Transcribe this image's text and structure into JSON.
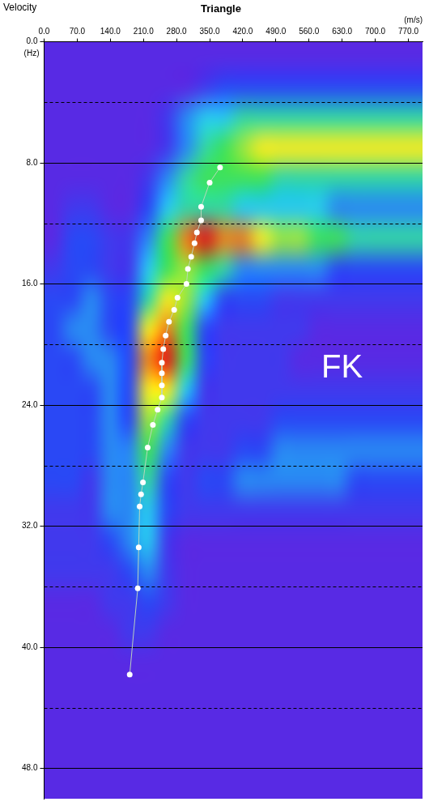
{
  "chart_data": {
    "type": "heatmap",
    "title": "Triangle",
    "corner_text": "Velocity",
    "x_label": "(m/s)",
    "y_label": "(Hz)",
    "xlim": [
      0,
      800
    ],
    "xticks": [
      {
        "value": 0,
        "label": "0.0"
      },
      {
        "value": 70,
        "label": "70.0"
      },
      {
        "value": 140,
        "label": "140.0"
      },
      {
        "value": 210,
        "label": "210.0"
      },
      {
        "value": 280,
        "label": "280.0"
      },
      {
        "value": 350,
        "label": "350.0"
      },
      {
        "value": 420,
        "label": "420.0"
      },
      {
        "value": 490,
        "label": "490.0"
      },
      {
        "value": 560,
        "label": "560.0"
      },
      {
        "value": 630,
        "label": "630.0"
      },
      {
        "value": 700,
        "label": "700.0"
      },
      {
        "value": 770,
        "label": "770.0"
      }
    ],
    "ylim": [
      0,
      50
    ],
    "yticks": [
      {
        "value": 0,
        "label": "0.0"
      },
      {
        "value": 8,
        "label": "8.0"
      },
      {
        "value": 16,
        "label": "16.0"
      },
      {
        "value": 24,
        "label": "24.0"
      },
      {
        "value": 32,
        "label": "32.0"
      },
      {
        "value": 40,
        "label": "40.0"
      },
      {
        "value": 48,
        "label": "48.0"
      }
    ],
    "y_minor_ticks": [
      4,
      12,
      20,
      28,
      36,
      44
    ],
    "grid": true,
    "heatmap": {
      "x_edges": [
        0,
        40,
        80,
        120,
        160,
        200,
        240,
        280,
        320,
        360,
        400,
        440,
        480,
        520,
        560,
        600,
        640,
        680,
        720,
        760,
        800
      ],
      "y_edges": [
        0,
        2,
        4,
        6,
        8,
        10,
        12,
        14,
        16,
        18,
        20,
        22,
        24,
        26,
        28,
        30,
        32,
        34,
        36,
        38,
        40,
        42,
        44,
        46,
        48,
        50
      ],
      "zlim": [
        0,
        10
      ],
      "z": [
        [
          0,
          0,
          0,
          0,
          0,
          0,
          0,
          0,
          0,
          0,
          0,
          0,
          0,
          0,
          0,
          0,
          0,
          0,
          0,
          0
        ],
        [
          0,
          0,
          0,
          0,
          0,
          0,
          0,
          0,
          1,
          2,
          2,
          2,
          2,
          2,
          2,
          2,
          2,
          2,
          2,
          2
        ],
        [
          0,
          0,
          0,
          0,
          0,
          0,
          1,
          3,
          4,
          4,
          5,
          5,
          5,
          5,
          5,
          5,
          5,
          5,
          5,
          5
        ],
        [
          0,
          0,
          0,
          0,
          0,
          0,
          1,
          3,
          5,
          6,
          7,
          8,
          8,
          8,
          8,
          8,
          8,
          8,
          8,
          8
        ],
        [
          0,
          0,
          0,
          0,
          0,
          1,
          3,
          5,
          6,
          6,
          6,
          6,
          5,
          5,
          5,
          5,
          5,
          5,
          5,
          5
        ],
        [
          0,
          1,
          1,
          0,
          0,
          2,
          4,
          5,
          5,
          5,
          4,
          4,
          4,
          4,
          4,
          3,
          3,
          3,
          3,
          3
        ],
        [
          0,
          2,
          2,
          1,
          1,
          3,
          6,
          9,
          10,
          9,
          9,
          8,
          7,
          7,
          6,
          6,
          5,
          5,
          5,
          5
        ],
        [
          1,
          2,
          2,
          1,
          1,
          4,
          6,
          7,
          6,
          5,
          3,
          3,
          3,
          3,
          3,
          2,
          2,
          2,
          2,
          2
        ],
        [
          2,
          2,
          3,
          2,
          2,
          5,
          8,
          7,
          4,
          2,
          2,
          2,
          1,
          1,
          1,
          1,
          1,
          1,
          1,
          1
        ],
        [
          2,
          3,
          3,
          2,
          2,
          8,
          9,
          6,
          2,
          1,
          1,
          1,
          1,
          1,
          0,
          0,
          0,
          0,
          0,
          0
        ],
        [
          2,
          2,
          3,
          3,
          2,
          9,
          10,
          6,
          2,
          1,
          1,
          1,
          1,
          0,
          0,
          0,
          0,
          0,
          0,
          0
        ],
        [
          2,
          2,
          2,
          3,
          2,
          8,
          8,
          4,
          1,
          1,
          1,
          1,
          1,
          1,
          1,
          1,
          1,
          1,
          1,
          1
        ],
        [
          2,
          2,
          2,
          3,
          2,
          7,
          5,
          2,
          1,
          1,
          1,
          1,
          2,
          2,
          2,
          2,
          2,
          2,
          2,
          2
        ],
        [
          2,
          2,
          2,
          3,
          3,
          6,
          3,
          1,
          1,
          1,
          2,
          2,
          3,
          3,
          3,
          3,
          3,
          3,
          3,
          3
        ],
        [
          2,
          2,
          1,
          3,
          3,
          5,
          2,
          1,
          2,
          2,
          3,
          3,
          3,
          3,
          3,
          3,
          2,
          2,
          2,
          2
        ],
        [
          1,
          1,
          1,
          3,
          3,
          4,
          2,
          1,
          1,
          1,
          1,
          1,
          1,
          1,
          1,
          1,
          1,
          1,
          1,
          1
        ],
        [
          1,
          1,
          1,
          2,
          3,
          4,
          1,
          0,
          0,
          0,
          0,
          0,
          0,
          0,
          0,
          0,
          0,
          0,
          0,
          0
        ],
        [
          1,
          1,
          1,
          1,
          2,
          3,
          1,
          0,
          0,
          0,
          0,
          0,
          0,
          0,
          0,
          0,
          0,
          0,
          0,
          0
        ],
        [
          0,
          0,
          0,
          1,
          1,
          2,
          1,
          0,
          0,
          0,
          0,
          0,
          0,
          0,
          0,
          0,
          0,
          0,
          0,
          0
        ],
        [
          0,
          0,
          0,
          0,
          1,
          1,
          0,
          0,
          0,
          0,
          0,
          0,
          0,
          0,
          0,
          0,
          0,
          0,
          0,
          0
        ],
        [
          0,
          0,
          0,
          0,
          0,
          0,
          0,
          0,
          0,
          0,
          0,
          0,
          0,
          0,
          0,
          0,
          0,
          0,
          0,
          0
        ],
        [
          0,
          0,
          0,
          0,
          0,
          0,
          0,
          0,
          0,
          0,
          0,
          0,
          0,
          0,
          0,
          0,
          0,
          0,
          0,
          0
        ],
        [
          0,
          0,
          0,
          0,
          0,
          0,
          0,
          0,
          0,
          0,
          0,
          0,
          0,
          0,
          0,
          0,
          0,
          0,
          0,
          0
        ],
        [
          0,
          0,
          0,
          0,
          0,
          0,
          0,
          0,
          0,
          0,
          0,
          0,
          0,
          0,
          0,
          0,
          0,
          0,
          0,
          0
        ],
        [
          0,
          0,
          0,
          0,
          0,
          0,
          0,
          0,
          0,
          0,
          0,
          0,
          0,
          0,
          0,
          0,
          0,
          0,
          0,
          0
        ]
      ]
    },
    "series": [
      {
        "type": "line",
        "color": "#ffffff",
        "marker": "circle",
        "line_style": "solid",
        "x": [
          372,
          350,
          332,
          332,
          323,
          318,
          311,
          304,
          301,
          282,
          275,
          264,
          257,
          252,
          249,
          249,
          249,
          249,
          240,
          230,
          219,
          209,
          205,
          202,
          200,
          198,
          181
        ],
        "y": [
          8.3,
          9.3,
          10.9,
          11.8,
          12.6,
          13.3,
          14.2,
          15.0,
          16.0,
          16.9,
          17.7,
          18.5,
          19.4,
          20.3,
          21.2,
          21.9,
          22.7,
          23.5,
          24.3,
          25.3,
          26.8,
          29.1,
          29.9,
          30.7,
          33.4,
          36.1,
          41.8
        ]
      }
    ],
    "annotations": [
      {
        "text": "FK",
        "x": 630,
        "y": 21.6
      }
    ]
  }
}
